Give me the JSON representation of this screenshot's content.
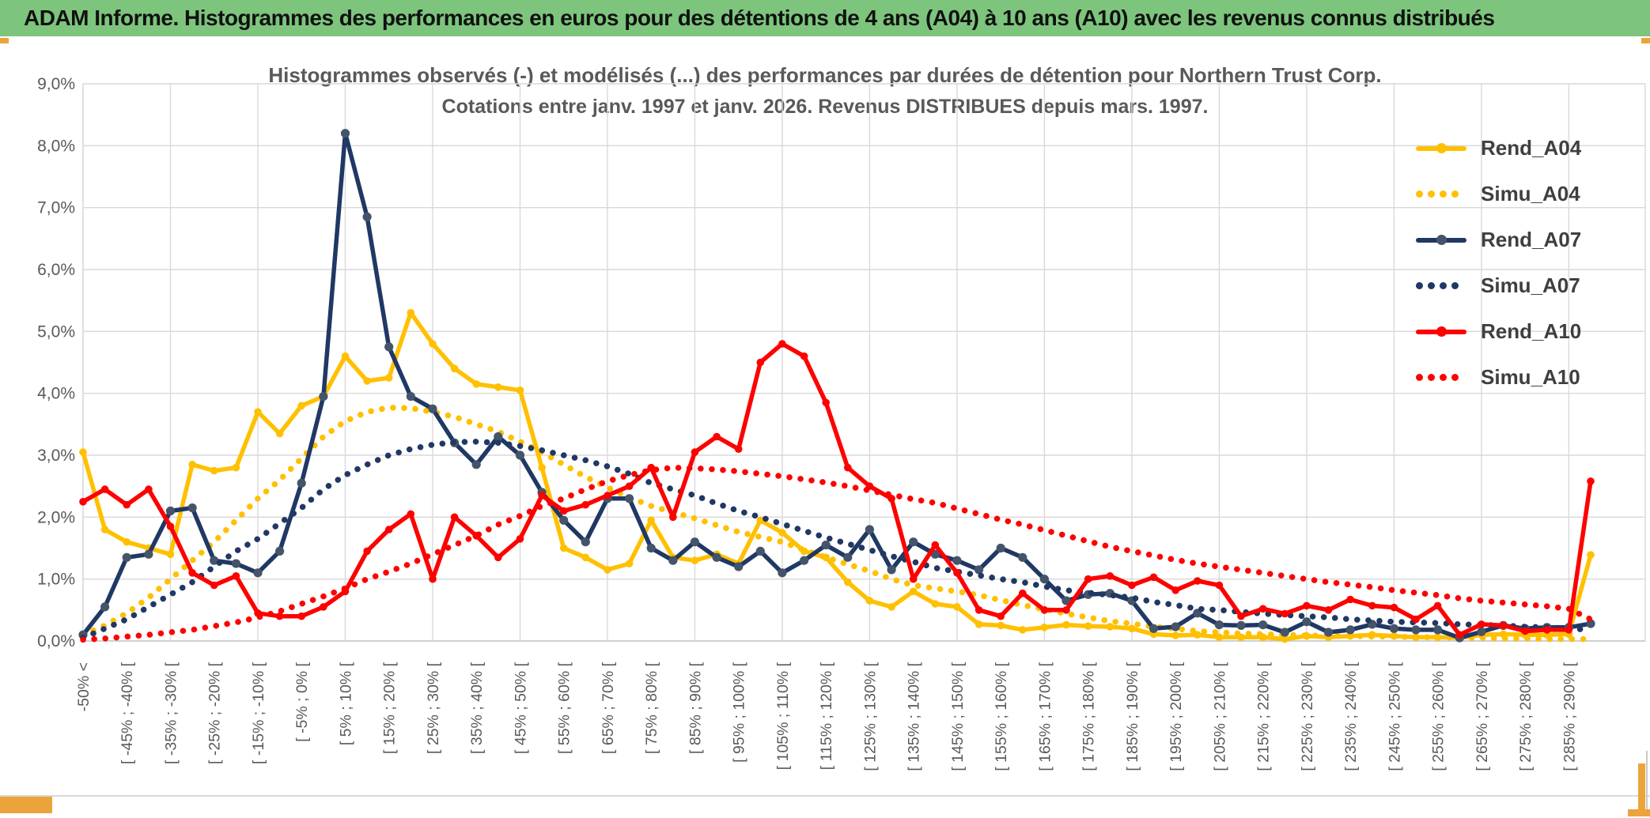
{
  "window": {
    "title": "ADAM Informe. Histogrammes des performances en euros pour des détentions de 4 ans (A04) à 10 ans (A10) avec les revenus connus distribués"
  },
  "chart": {
    "title_line1": "Histogrammes observés (-) et modélisés (...) des performances par durées de détention pour Northern Trust Corp.",
    "title_line2": "Cotations entre janv. 1997 et janv. 2026. Revenus DISTRIBUES depuis mars. 1997.",
    "y_ticks": [
      "9,0%",
      "8,0%",
      "7,0%",
      "6,0%",
      "5,0%",
      "4,0%",
      "3,0%",
      "2,0%",
      "1,0%",
      "0,0%"
    ],
    "colors": {
      "gold": "#FFC000",
      "navy": "#203864",
      "navy_marker": "#44546A",
      "red": "#FE0000",
      "grid": "#D9D9D9",
      "axis": "#BFBFBF",
      "text": "#595959",
      "header_green": "#7dc57d",
      "accent_gold": "#eba43c"
    }
  },
  "chart_data": {
    "type": "line",
    "title": "Histogrammes observés (-) et modélisés (...) des performances par durées de détention pour Northern Trust Corp.",
    "subtitle": "Cotations entre janv. 1997 et janv. 2026. Revenus DISTRIBUES depuis mars. 1997.",
    "xlabel": "",
    "ylabel": "",
    "ylim": [
      0,
      9
    ],
    "y_unit": "percent",
    "grid": true,
    "legend_position": "right",
    "categories": [
      "-50% <",
      "",
      "[ -45% ; -40% [",
      "",
      "[ -35% ; -30% [",
      "",
      "[ -25% ; -20% [",
      "",
      "[ -15% ; -10% [",
      "",
      "[ -5% ; 0% [",
      "",
      "[ 5% ; 10% [",
      "",
      "[ 15% ; 20% [",
      "",
      "[ 25% ; 30% [",
      "",
      "[ 35% ; 40% [",
      "",
      "[ 45% ; 50% [",
      "",
      "[ 55% ; 60% [",
      "",
      "[ 65% ; 70% [",
      "",
      "[ 75% ; 80% [",
      "",
      "[ 85% ; 90% [",
      "",
      "[ 95% ; 100% [",
      "",
      "[ 105% ; 110% [",
      "",
      "[ 115% ; 120% [",
      "",
      "[ 125% ; 130% [",
      "",
      "[ 135% ; 140% [",
      "",
      "[ 145% ; 150% [",
      "",
      "[ 155% ; 160% [",
      "",
      "[ 165% ; 170% [",
      "",
      "[ 175% ; 180% [",
      "",
      "[ 185% ; 190% [",
      "",
      "[ 195% ; 200% [",
      "",
      "[ 205% ; 210% [",
      "",
      "[ 215% ; 220% [",
      "",
      "[ 225% ; 230% [",
      "",
      "[ 235% ; 240% [",
      "",
      "[ 245% ; 250% [",
      "",
      "[ 255% ; 260% [",
      "",
      "[ 265% ; 270% [",
      "",
      "[ 275% ; 280% [",
      "",
      "[ 285% ; 290% [",
      ""
    ],
    "series": [
      {
        "name": "Rend_A04",
        "style": "solid",
        "color": "#FFC000",
        "marker_color": "#FFC000",
        "values": [
          3.05,
          1.8,
          1.6,
          1.5,
          1.4,
          2.85,
          2.75,
          2.8,
          3.7,
          3.35,
          3.8,
          3.95,
          4.6,
          4.2,
          4.25,
          5.3,
          4.8,
          4.4,
          4.15,
          4.1,
          4.05,
          2.8,
          1.5,
          1.35,
          1.15,
          1.25,
          1.95,
          1.35,
          1.3,
          1.4,
          1.25,
          1.95,
          1.75,
          1.45,
          1.35,
          0.95,
          0.65,
          0.55,
          0.8,
          0.6,
          0.55,
          0.27,
          0.25,
          0.18,
          0.22,
          0.26,
          0.24,
          0.23,
          0.2,
          0.11,
          0.09,
          0.1,
          0.06,
          0.06,
          0.06,
          0.03,
          0.08,
          0.06,
          0.08,
          0.1,
          0.08,
          0.06,
          0.06,
          0.05,
          0.1,
          0.11,
          0.1,
          0.1,
          0.11,
          1.39
        ]
      },
      {
        "name": "Simu_A04",
        "style": "dotted",
        "color": "#FFC000",
        "values": [
          0.1,
          0.25,
          0.45,
          0.7,
          1.0,
          1.3,
          1.6,
          1.95,
          2.3,
          2.6,
          2.95,
          3.3,
          3.55,
          3.7,
          3.77,
          3.76,
          3.7,
          3.62,
          3.5,
          3.38,
          3.22,
          3.05,
          2.85,
          2.65,
          2.48,
          2.32,
          2.18,
          2.08,
          1.98,
          1.87,
          1.76,
          1.68,
          1.6,
          1.47,
          1.35,
          1.24,
          1.13,
          1.0,
          0.9,
          0.85,
          0.8,
          0.74,
          0.66,
          0.58,
          0.51,
          0.44,
          0.38,
          0.32,
          0.28,
          0.23,
          0.2,
          0.16,
          0.14,
          0.12,
          0.11,
          0.1,
          0.09,
          0.08,
          0.08,
          0.07,
          0.07,
          0.06,
          0.06,
          0.05,
          0.05,
          0.04,
          0.04,
          0.03,
          0.03,
          0.03
        ]
      },
      {
        "name": "Rend_A07",
        "style": "solid",
        "color": "#203864",
        "marker_color": "#44546A",
        "values": [
          0.1,
          0.55,
          1.35,
          1.4,
          2.1,
          2.15,
          1.3,
          1.25,
          1.1,
          1.45,
          2.55,
          3.95,
          8.2,
          6.85,
          4.75,
          3.95,
          3.75,
          3.2,
          2.85,
          3.3,
          3.0,
          2.4,
          1.95,
          1.6,
          2.3,
          2.3,
          1.5,
          1.3,
          1.6,
          1.35,
          1.2,
          1.45,
          1.1,
          1.3,
          1.55,
          1.35,
          1.8,
          1.15,
          1.6,
          1.4,
          1.3,
          1.15,
          1.5,
          1.35,
          1.0,
          0.65,
          0.75,
          0.77,
          0.65,
          0.2,
          0.23,
          0.45,
          0.26,
          0.25,
          0.26,
          0.14,
          0.31,
          0.14,
          0.18,
          0.27,
          0.2,
          0.18,
          0.18,
          0.05,
          0.15,
          0.25,
          0.2,
          0.22,
          0.22,
          0.28
        ]
      },
      {
        "name": "Simu_A07",
        "style": "dotted",
        "color": "#203864",
        "values": [
          0.05,
          0.2,
          0.35,
          0.55,
          0.75,
          0.95,
          1.2,
          1.45,
          1.65,
          1.9,
          2.15,
          2.45,
          2.68,
          2.85,
          3.0,
          3.1,
          3.17,
          3.21,
          3.22,
          3.2,
          3.15,
          3.08,
          3.0,
          2.92,
          2.82,
          2.7,
          2.55,
          2.45,
          2.35,
          2.22,
          2.1,
          2.0,
          1.89,
          1.78,
          1.67,
          1.57,
          1.47,
          1.37,
          1.28,
          1.18,
          1.12,
          1.06,
          1.0,
          0.95,
          0.88,
          0.82,
          0.78,
          0.74,
          0.7,
          0.63,
          0.58,
          0.52,
          0.5,
          0.47,
          0.44,
          0.42,
          0.4,
          0.38,
          0.35,
          0.33,
          0.31,
          0.3,
          0.29,
          0.27,
          0.26,
          0.25,
          0.23,
          0.22,
          0.2,
          0.18
        ]
      },
      {
        "name": "Rend_A10",
        "style": "solid",
        "color": "#FE0000",
        "marker_color": "#FE0000",
        "values": [
          2.25,
          2.45,
          2.2,
          2.45,
          1.85,
          1.1,
          0.9,
          1.05,
          0.45,
          0.4,
          0.4,
          0.55,
          0.8,
          1.45,
          1.8,
          2.05,
          1.0,
          2.0,
          1.7,
          1.35,
          1.65,
          2.35,
          2.1,
          2.2,
          2.35,
          2.5,
          2.8,
          2.0,
          3.05,
          3.3,
          3.1,
          4.5,
          4.8,
          4.6,
          3.85,
          2.8,
          2.5,
          2.3,
          1.0,
          1.55,
          1.1,
          0.5,
          0.4,
          0.77,
          0.5,
          0.5,
          1.0,
          1.05,
          0.9,
          1.03,
          0.82,
          0.97,
          0.9,
          0.4,
          0.52,
          0.44,
          0.57,
          0.5,
          0.67,
          0.57,
          0.54,
          0.35,
          0.57,
          0.1,
          0.27,
          0.25,
          0.16,
          0.18,
          0.18,
          2.58
        ]
      },
      {
        "name": "Simu_A10",
        "style": "dotted",
        "color": "#FE0000",
        "values": [
          0.02,
          0.04,
          0.07,
          0.1,
          0.14,
          0.18,
          0.24,
          0.3,
          0.38,
          0.48,
          0.6,
          0.72,
          0.85,
          1.0,
          1.12,
          1.25,
          1.4,
          1.55,
          1.7,
          1.88,
          2.02,
          2.18,
          2.3,
          2.45,
          2.58,
          2.68,
          2.76,
          2.8,
          2.79,
          2.77,
          2.74,
          2.7,
          2.66,
          2.61,
          2.56,
          2.5,
          2.43,
          2.36,
          2.29,
          2.23,
          2.14,
          2.05,
          1.96,
          1.88,
          1.79,
          1.7,
          1.61,
          1.52,
          1.45,
          1.38,
          1.31,
          1.25,
          1.2,
          1.15,
          1.1,
          1.05,
          1.0,
          0.95,
          0.91,
          0.87,
          0.82,
          0.78,
          0.74,
          0.69,
          0.65,
          0.62,
          0.59,
          0.56,
          0.52,
          0.35
        ]
      }
    ],
    "legend": [
      {
        "label": "Rend_A04",
        "style": "solid",
        "color": "#FFC000",
        "marker_color": "#FFC000"
      },
      {
        "label": "Simu_A04",
        "style": "dotted",
        "color": "#FFC000"
      },
      {
        "label": "Rend_A07",
        "style": "solid",
        "color": "#203864",
        "marker_color": "#44546A"
      },
      {
        "label": "Simu_A07",
        "style": "dotted",
        "color": "#203864"
      },
      {
        "label": "Rend_A10",
        "style": "solid",
        "color": "#FE0000",
        "marker_color": "#FE0000"
      },
      {
        "label": "Simu_A10",
        "style": "dotted",
        "color": "#FE0000"
      }
    ]
  }
}
